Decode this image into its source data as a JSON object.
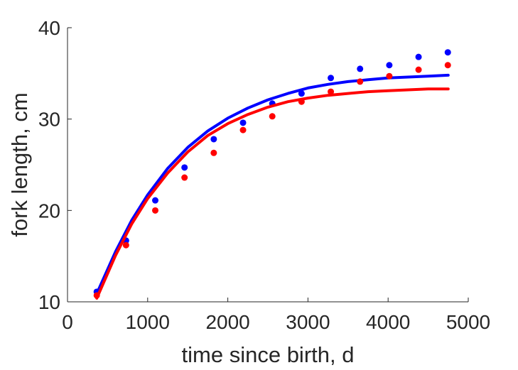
{
  "chart_data": {
    "type": "scatter",
    "xlabel": "time since birth, d",
    "ylabel": "fork length, cm",
    "xlim": [
      0,
      5000
    ],
    "ylim": [
      10,
      40
    ],
    "xticks": [
      0,
      1000,
      2000,
      3000,
      4000,
      5000
    ],
    "yticks": [
      10,
      20,
      30,
      40
    ],
    "grid": false,
    "box": false,
    "series": [
      {
        "color": "#0000ff",
        "points": {
          "x": [
            365,
            730,
            1095,
            1460,
            1825,
            2190,
            2555,
            2920,
            3285,
            3650,
            4015,
            4380,
            4745
          ],
          "y": [
            11.1,
            16.7,
            21.1,
            24.7,
            27.8,
            29.6,
            31.7,
            32.8,
            34.5,
            35.5,
            35.9,
            36.8,
            37.3
          ]
        },
        "fit": {
          "x": [
            365,
            600,
            800,
            1000,
            1250,
            1500,
            1750,
            2000,
            2250,
            2500,
            2750,
            3000,
            3250,
            3500,
            3750,
            4000,
            4250,
            4500,
            4750
          ],
          "y": [
            10.9,
            15.5,
            18.9,
            21.7,
            24.6,
            26.9,
            28.7,
            30.1,
            31.2,
            32.1,
            32.8,
            33.4,
            33.8,
            34.1,
            34.3,
            34.5,
            34.6,
            34.7,
            34.8
          ]
        }
      },
      {
        "color": "#ff0000",
        "points": {
          "x": [
            365,
            730,
            1095,
            1460,
            1825,
            2190,
            2555,
            2920,
            3285,
            3650,
            4015,
            4380,
            4745
          ],
          "y": [
            10.7,
            16.2,
            20.0,
            23.6,
            26.3,
            28.8,
            30.3,
            31.9,
            33.0,
            34.1,
            34.7,
            35.4,
            35.9
          ]
        },
        "fit": {
          "x": [
            365,
            600,
            800,
            1000,
            1250,
            1500,
            1750,
            2000,
            2250,
            2500,
            2750,
            3000,
            3250,
            3500,
            3750,
            4000,
            4250,
            4500,
            4750
          ],
          "y": [
            10.4,
            15.1,
            18.5,
            21.3,
            24.1,
            26.4,
            28.2,
            29.5,
            30.5,
            31.3,
            31.9,
            32.3,
            32.6,
            32.8,
            33.0,
            33.1,
            33.2,
            33.3,
            33.3
          ]
        }
      }
    ]
  }
}
